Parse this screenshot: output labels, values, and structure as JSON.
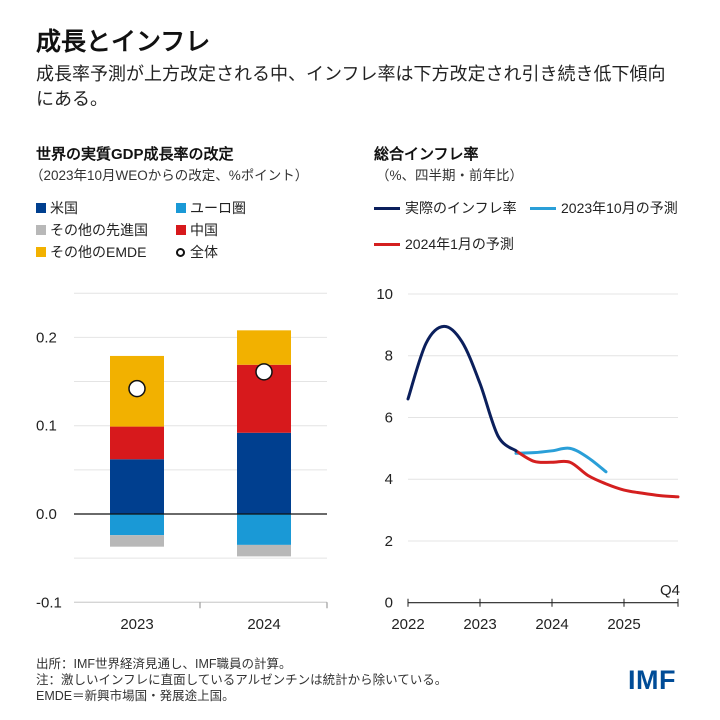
{
  "header": {
    "title": "成長とインフレ",
    "subtitle": "成長率予測が上方改定される中、インフレ率は下方改定され引き続き低下傾向にある。"
  },
  "footer": {
    "lines": [
      "出所：IMF世界経済見通し、IMF職員の計算。",
      "注：激しいインフレに直面しているアルゼンチンは統計から除いている。",
      "EMDE＝新興市場国・発展途上国。"
    ],
    "logo": "IMF"
  },
  "chart_data": [
    {
      "type": "bar",
      "stacked": true,
      "title": "世界の実質GDP成長率の改定",
      "subtitle": "（2023年10月WEOからの改定、%ポイント）",
      "categories": [
        "2023",
        "2024"
      ],
      "ylim": [
        -0.1,
        0.25
      ],
      "yticks": [
        "0.2",
        "0.1",
        "0.0",
        "-0.1"
      ],
      "grid": true,
      "legend_position": "top",
      "series": [
        {
          "name": "米国",
          "color": "#003f8f",
          "values": [
            0.062,
            0.092
          ]
        },
        {
          "name": "ユーロ圏",
          "color": "#1a99d6",
          "values": [
            -0.024,
            -0.035
          ]
        },
        {
          "name": "その他の先進国",
          "color": "#b8b8b8",
          "values": [
            -0.013,
            -0.013
          ]
        },
        {
          "name": "中国",
          "color": "#d7191c",
          "values": [
            0.037,
            0.077
          ]
        },
        {
          "name": "その他のEMDE",
          "color": "#f2b100",
          "values": [
            0.08,
            0.039
          ]
        }
      ],
      "total": {
        "name": "全体",
        "values": [
          0.142,
          0.161
        ]
      }
    },
    {
      "type": "line",
      "title": "総合インフレ率",
      "subtitle": "（%、四半期・前年比）",
      "xlim": [
        2022,
        2025.75
      ],
      "ylim": [
        0,
        10
      ],
      "xticks": [
        "2022",
        "2023",
        "2024",
        "2025"
      ],
      "xend_label": "Q4",
      "yticks": [
        "10",
        "8",
        "6",
        "4",
        "2",
        "0"
      ],
      "grid": true,
      "legend_position": "top",
      "series": [
        {
          "name": "実際のインフレ率",
          "color": "#0b1f5c",
          "x": [
            2022.0,
            2022.25,
            2022.5,
            2022.75,
            2023.0,
            2023.25,
            2023.5
          ],
          "y": [
            6.6,
            8.4,
            8.95,
            8.45,
            7.1,
            5.4,
            4.92
          ]
        },
        {
          "name": "2023年10月の予測",
          "color": "#2a9fd8",
          "x": [
            2023.5,
            2023.75,
            2024.0,
            2024.25,
            2024.5,
            2024.75
          ],
          "y": [
            4.84,
            4.86,
            4.92,
            5.0,
            4.7,
            4.24
          ]
        },
        {
          "name": "2024年1月の予測",
          "color": "#d41f1f",
          "x": [
            2023.5,
            2023.75,
            2024.0,
            2024.25,
            2024.5,
            2024.75,
            2025.0,
            2025.25,
            2025.5,
            2025.75
          ],
          "y": [
            4.92,
            4.58,
            4.55,
            4.55,
            4.12,
            3.85,
            3.65,
            3.55,
            3.47,
            3.43
          ]
        }
      ]
    }
  ]
}
